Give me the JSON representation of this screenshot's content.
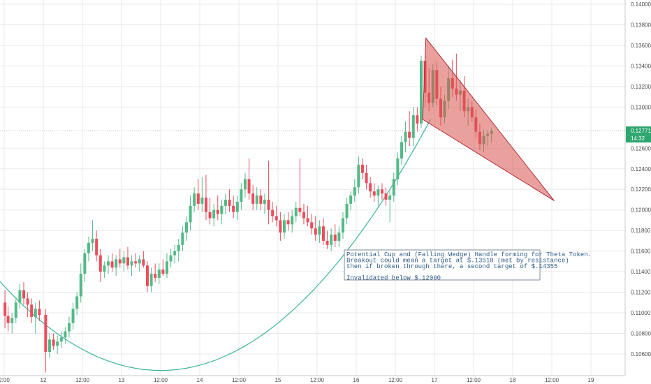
{
  "chart_data": {
    "type": "candlestick",
    "colors": {
      "up": "#53b987",
      "down": "#eb4d5c",
      "grid": "#e8e8e8",
      "cup_curve": "#3bb59a",
      "wedge_fill": "#d9534f",
      "wedge_stroke": "#b02a37",
      "last_price_bg": "#2ea56f",
      "annotation_border": "#7d8b99",
      "annotation_text": "#2e5c8a"
    },
    "ylim": [
      0.1046,
      0.1405
    ],
    "y_ticks": [
      "0.10600",
      "0.10800",
      "0.11000",
      "0.11200",
      "0.11400",
      "0.11600",
      "0.11800",
      "0.12000",
      "0.12200",
      "0.12400",
      "0.12600",
      "0.13000",
      "0.13200",
      "0.13400",
      "0.13600",
      "0.13800",
      "0.14000"
    ],
    "x_ticks": [
      "2:00",
      "12",
      "12:00",
      "13",
      "12:00",
      "14",
      "12:00",
      "15",
      "12:00",
      "16",
      "12:00",
      "17",
      "12:00",
      "18",
      "12:00",
      "19"
    ],
    "last_price": "0.12771",
    "countdown": "14:32",
    "annotation": [
      "Potential Cup and (Falling Wedge) Handle forming for Theta Token.",
      "Breakout could mean a target at $.13518 (met by resistance)",
      "then if broken through there, a second target of $.14355",
      "",
      "Invalidated below $.12000"
    ],
    "wedge": [
      [
        16.89,
        0.1367
      ],
      [
        18.53,
        0.1209
      ],
      [
        16.85,
        0.1288
      ]
    ],
    "cup": {
      "x0": 10.55,
      "x1": 16.95,
      "vertex_x": 13.5,
      "vertex_y": 0.1044,
      "end_y": 0.1288
    },
    "candles": [
      {
        "t": 11.51,
        "o": 0.111,
        "h": 0.1122,
        "l": 0.1085,
        "c": 0.1097
      },
      {
        "t": 11.55,
        "o": 0.1097,
        "h": 0.1106,
        "l": 0.1082,
        "c": 0.109
      },
      {
        "t": 11.6,
        "o": 0.109,
        "h": 0.11,
        "l": 0.108,
        "c": 0.1095
      },
      {
        "t": 11.65,
        "o": 0.1095,
        "h": 0.1115,
        "l": 0.109,
        "c": 0.111
      },
      {
        "t": 11.7,
        "o": 0.111,
        "h": 0.1128,
        "l": 0.1104,
        "c": 0.1122
      },
      {
        "t": 11.75,
        "o": 0.1122,
        "h": 0.113,
        "l": 0.1108,
        "c": 0.1114
      },
      {
        "t": 11.8,
        "o": 0.1114,
        "h": 0.112,
        "l": 0.1096,
        "c": 0.1108
      },
      {
        "t": 11.85,
        "o": 0.1108,
        "h": 0.1114,
        "l": 0.109,
        "c": 0.1096
      },
      {
        "t": 11.9,
        "o": 0.1096,
        "h": 0.111,
        "l": 0.108,
        "c": 0.1104
      },
      {
        "t": 11.95,
        "o": 0.1104,
        "h": 0.1112,
        "l": 0.1092,
        "c": 0.1098
      },
      {
        "t": 12.03,
        "o": 0.1098,
        "h": 0.1104,
        "l": 0.1042,
        "c": 0.1062
      },
      {
        "t": 12.08,
        "o": 0.1062,
        "h": 0.108,
        "l": 0.1056,
        "c": 0.1074
      },
      {
        "t": 12.13,
        "o": 0.1074,
        "h": 0.108,
        "l": 0.1064,
        "c": 0.1068
      },
      {
        "t": 12.18,
        "o": 0.1068,
        "h": 0.1078,
        "l": 0.106,
        "c": 0.1072
      },
      {
        "t": 12.23,
        "o": 0.1072,
        "h": 0.1082,
        "l": 0.1066,
        "c": 0.1076
      },
      {
        "t": 12.28,
        "o": 0.1076,
        "h": 0.1086,
        "l": 0.107,
        "c": 0.1082
      },
      {
        "t": 12.33,
        "o": 0.1082,
        "h": 0.1096,
        "l": 0.1076,
        "c": 0.109
      },
      {
        "t": 12.38,
        "o": 0.109,
        "h": 0.111,
        "l": 0.1084,
        "c": 0.1104
      },
      {
        "t": 12.43,
        "o": 0.1104,
        "h": 0.112,
        "l": 0.1098,
        "c": 0.1116
      },
      {
        "t": 12.48,
        "o": 0.1116,
        "h": 0.1148,
        "l": 0.111,
        "c": 0.1138
      },
      {
        "t": 12.53,
        "o": 0.1138,
        "h": 0.1162,
        "l": 0.113,
        "c": 0.1158
      },
      {
        "t": 12.58,
        "o": 0.1158,
        "h": 0.1174,
        "l": 0.115,
        "c": 0.1168
      },
      {
        "t": 12.63,
        "o": 0.1168,
        "h": 0.119,
        "l": 0.116,
        "c": 0.1172
      },
      {
        "t": 12.68,
        "o": 0.1172,
        "h": 0.118,
        "l": 0.115,
        "c": 0.1156
      },
      {
        "t": 12.73,
        "o": 0.1156,
        "h": 0.1162,
        "l": 0.113,
        "c": 0.114
      },
      {
        "t": 12.78,
        "o": 0.114,
        "h": 0.115,
        "l": 0.1134,
        "c": 0.1146
      },
      {
        "t": 12.83,
        "o": 0.1146,
        "h": 0.1156,
        "l": 0.1138,
        "c": 0.115
      },
      {
        "t": 12.88,
        "o": 0.115,
        "h": 0.1158,
        "l": 0.114,
        "c": 0.1144
      },
      {
        "t": 12.93,
        "o": 0.1144,
        "h": 0.1156,
        "l": 0.1136,
        "c": 0.1152
      },
      {
        "t": 12.98,
        "o": 0.1152,
        "h": 0.1162,
        "l": 0.1144,
        "c": 0.1148
      },
      {
        "t": 13.03,
        "o": 0.1148,
        "h": 0.116,
        "l": 0.114,
        "c": 0.1154
      },
      {
        "t": 13.08,
        "o": 0.1154,
        "h": 0.1164,
        "l": 0.1142,
        "c": 0.1146
      },
      {
        "t": 13.13,
        "o": 0.1146,
        "h": 0.1156,
        "l": 0.1136,
        "c": 0.115
      },
      {
        "t": 13.18,
        "o": 0.115,
        "h": 0.1158,
        "l": 0.1144,
        "c": 0.1148
      },
      {
        "t": 13.23,
        "o": 0.1148,
        "h": 0.1156,
        "l": 0.114,
        "c": 0.1152
      },
      {
        "t": 13.28,
        "o": 0.1152,
        "h": 0.116,
        "l": 0.1144,
        "c": 0.1146
      },
      {
        "t": 13.33,
        "o": 0.1146,
        "h": 0.115,
        "l": 0.112,
        "c": 0.1126
      },
      {
        "t": 13.38,
        "o": 0.1126,
        "h": 0.1144,
        "l": 0.112,
        "c": 0.1138
      },
      {
        "t": 13.43,
        "o": 0.1138,
        "h": 0.1148,
        "l": 0.113,
        "c": 0.1134
      },
      {
        "t": 13.48,
        "o": 0.1134,
        "h": 0.1148,
        "l": 0.1128,
        "c": 0.1142
      },
      {
        "t": 13.53,
        "o": 0.1142,
        "h": 0.1152,
        "l": 0.1136,
        "c": 0.1138
      },
      {
        "t": 13.58,
        "o": 0.1138,
        "h": 0.1158,
        "l": 0.1134,
        "c": 0.115
      },
      {
        "t": 13.63,
        "o": 0.115,
        "h": 0.1162,
        "l": 0.1144,
        "c": 0.1156
      },
      {
        "t": 13.68,
        "o": 0.1156,
        "h": 0.1166,
        "l": 0.1148,
        "c": 0.116
      },
      {
        "t": 13.73,
        "o": 0.116,
        "h": 0.1172,
        "l": 0.115,
        "c": 0.1166
      },
      {
        "t": 13.78,
        "o": 0.1166,
        "h": 0.1184,
        "l": 0.116,
        "c": 0.1178
      },
      {
        "t": 13.83,
        "o": 0.1178,
        "h": 0.1194,
        "l": 0.117,
        "c": 0.1188
      },
      {
        "t": 13.88,
        "o": 0.1188,
        "h": 0.1214,
        "l": 0.118,
        "c": 0.1204
      },
      {
        "t": 13.93,
        "o": 0.1204,
        "h": 0.1222,
        "l": 0.1198,
        "c": 0.1216
      },
      {
        "t": 13.98,
        "o": 0.1216,
        "h": 0.123,
        "l": 0.12,
        "c": 0.1206
      },
      {
        "t": 14.03,
        "o": 0.1206,
        "h": 0.1232,
        "l": 0.1198,
        "c": 0.1212
      },
      {
        "t": 14.08,
        "o": 0.1212,
        "h": 0.1234,
        "l": 0.119,
        "c": 0.1198
      },
      {
        "t": 14.13,
        "o": 0.1198,
        "h": 0.1212,
        "l": 0.1186,
        "c": 0.1192
      },
      {
        "t": 14.18,
        "o": 0.1192,
        "h": 0.1206,
        "l": 0.1184,
        "c": 0.12
      },
      {
        "t": 14.23,
        "o": 0.12,
        "h": 0.1214,
        "l": 0.119,
        "c": 0.1196
      },
      {
        "t": 14.28,
        "o": 0.1196,
        "h": 0.121,
        "l": 0.1186,
        "c": 0.1204
      },
      {
        "t": 14.33,
        "o": 0.1204,
        "h": 0.1216,
        "l": 0.1196,
        "c": 0.121
      },
      {
        "t": 14.38,
        "o": 0.121,
        "h": 0.122,
        "l": 0.1198,
        "c": 0.1204
      },
      {
        "t": 14.43,
        "o": 0.1204,
        "h": 0.1214,
        "l": 0.1192,
        "c": 0.1198
      },
      {
        "t": 14.48,
        "o": 0.1198,
        "h": 0.1214,
        "l": 0.119,
        "c": 0.1208
      },
      {
        "t": 14.53,
        "o": 0.1208,
        "h": 0.1226,
        "l": 0.12,
        "c": 0.122
      },
      {
        "t": 14.58,
        "o": 0.122,
        "h": 0.1236,
        "l": 0.1212,
        "c": 0.123
      },
      {
        "t": 14.63,
        "o": 0.123,
        "h": 0.125,
        "l": 0.121,
        "c": 0.1216
      },
      {
        "t": 14.68,
        "o": 0.1216,
        "h": 0.1224,
        "l": 0.12,
        "c": 0.1206
      },
      {
        "t": 14.73,
        "o": 0.1206,
        "h": 0.1222,
        "l": 0.12,
        "c": 0.1214
      },
      {
        "t": 14.78,
        "o": 0.1214,
        "h": 0.122,
        "l": 0.12,
        "c": 0.1206
      },
      {
        "t": 14.83,
        "o": 0.1206,
        "h": 0.1216,
        "l": 0.1196,
        "c": 0.121
      },
      {
        "t": 14.88,
        "o": 0.121,
        "h": 0.1248,
        "l": 0.1186,
        "c": 0.12
      },
      {
        "t": 14.93,
        "o": 0.12,
        "h": 0.1208,
        "l": 0.1188,
        "c": 0.1194
      },
      {
        "t": 14.98,
        "o": 0.1194,
        "h": 0.1204,
        "l": 0.1184,
        "c": 0.119
      },
      {
        "t": 15.03,
        "o": 0.119,
        "h": 0.1198,
        "l": 0.117,
        "c": 0.1178
      },
      {
        "t": 15.08,
        "o": 0.1178,
        "h": 0.1196,
        "l": 0.1172,
        "c": 0.119
      },
      {
        "t": 15.13,
        "o": 0.119,
        "h": 0.1198,
        "l": 0.118,
        "c": 0.1186
      },
      {
        "t": 15.18,
        "o": 0.1186,
        "h": 0.12,
        "l": 0.1178,
        "c": 0.1194
      },
      {
        "t": 15.23,
        "o": 0.1194,
        "h": 0.1208,
        "l": 0.1188,
        "c": 0.1202
      },
      {
        "t": 15.28,
        "o": 0.1202,
        "h": 0.125,
        "l": 0.1194,
        "c": 0.1198
      },
      {
        "t": 15.33,
        "o": 0.1198,
        "h": 0.1206,
        "l": 0.1186,
        "c": 0.1192
      },
      {
        "t": 15.38,
        "o": 0.1192,
        "h": 0.1204,
        "l": 0.1184,
        "c": 0.1188
      },
      {
        "t": 15.43,
        "o": 0.1188,
        "h": 0.1196,
        "l": 0.1176,
        "c": 0.1182
      },
      {
        "t": 15.48,
        "o": 0.1182,
        "h": 0.1194,
        "l": 0.117,
        "c": 0.1176
      },
      {
        "t": 15.53,
        "o": 0.1176,
        "h": 0.119,
        "l": 0.1168,
        "c": 0.1184
      },
      {
        "t": 15.58,
        "o": 0.1184,
        "h": 0.1192,
        "l": 0.1166,
        "c": 0.117
      },
      {
        "t": 15.63,
        "o": 0.117,
        "h": 0.118,
        "l": 0.1162,
        "c": 0.1166
      },
      {
        "t": 15.68,
        "o": 0.1166,
        "h": 0.1182,
        "l": 0.116,
        "c": 0.1176
      },
      {
        "t": 15.73,
        "o": 0.1176,
        "h": 0.1186,
        "l": 0.1164,
        "c": 0.117
      },
      {
        "t": 15.78,
        "o": 0.117,
        "h": 0.1184,
        "l": 0.1164,
        "c": 0.1178
      },
      {
        "t": 15.83,
        "o": 0.1178,
        "h": 0.1198,
        "l": 0.1172,
        "c": 0.1192
      },
      {
        "t": 15.88,
        "o": 0.1192,
        "h": 0.1212,
        "l": 0.1186,
        "c": 0.1206
      },
      {
        "t": 15.93,
        "o": 0.1206,
        "h": 0.1218,
        "l": 0.12,
        "c": 0.1214
      },
      {
        "t": 15.98,
        "o": 0.1214,
        "h": 0.123,
        "l": 0.1208,
        "c": 0.1222
      },
      {
        "t": 16.03,
        "o": 0.1222,
        "h": 0.1252,
        "l": 0.1216,
        "c": 0.1244
      },
      {
        "t": 16.08,
        "o": 0.1244,
        "h": 0.125,
        "l": 0.123,
        "c": 0.1236
      },
      {
        "t": 16.13,
        "o": 0.1236,
        "h": 0.1244,
        "l": 0.122,
        "c": 0.1226
      },
      {
        "t": 16.18,
        "o": 0.1226,
        "h": 0.1232,
        "l": 0.1212,
        "c": 0.1218
      },
      {
        "t": 16.23,
        "o": 0.1218,
        "h": 0.1226,
        "l": 0.1208,
        "c": 0.1214
      },
      {
        "t": 16.28,
        "o": 0.1214,
        "h": 0.1224,
        "l": 0.1204,
        "c": 0.122
      },
      {
        "t": 16.33,
        "o": 0.122,
        "h": 0.1226,
        "l": 0.121,
        "c": 0.1216
      },
      {
        "t": 16.38,
        "o": 0.1216,
        "h": 0.1222,
        "l": 0.1204,
        "c": 0.121
      },
      {
        "t": 16.43,
        "o": 0.121,
        "h": 0.1218,
        "l": 0.1188,
        "c": 0.1214
      },
      {
        "t": 16.48,
        "o": 0.1214,
        "h": 0.1236,
        "l": 0.1208,
        "c": 0.123
      },
      {
        "t": 16.53,
        "o": 0.123,
        "h": 0.1256,
        "l": 0.1224,
        "c": 0.125
      },
      {
        "t": 16.58,
        "o": 0.125,
        "h": 0.1272,
        "l": 0.1244,
        "c": 0.1266
      },
      {
        "t": 16.63,
        "o": 0.1266,
        "h": 0.1286,
        "l": 0.1256,
        "c": 0.1276
      },
      {
        "t": 16.68,
        "o": 0.1276,
        "h": 0.1296,
        "l": 0.1262,
        "c": 0.127
      },
      {
        "t": 16.73,
        "o": 0.127,
        "h": 0.13,
        "l": 0.1262,
        "c": 0.1292
      },
      {
        "t": 16.78,
        "o": 0.1292,
        "h": 0.13,
        "l": 0.1276,
        "c": 0.1284
      },
      {
        "t": 16.83,
        "o": 0.1284,
        "h": 0.135,
        "l": 0.128,
        "c": 0.1345
      },
      {
        "t": 16.88,
        "o": 0.1345,
        "h": 0.135,
        "l": 0.13,
        "c": 0.1314
      },
      {
        "t": 16.93,
        "o": 0.1314,
        "h": 0.1338,
        "l": 0.1296,
        "c": 0.1304
      },
      {
        "t": 16.98,
        "o": 0.1304,
        "h": 0.1342,
        "l": 0.13,
        "c": 0.1336
      },
      {
        "t": 17.03,
        "o": 0.1336,
        "h": 0.1344,
        "l": 0.1302,
        "c": 0.1308
      },
      {
        "t": 17.08,
        "o": 0.1308,
        "h": 0.132,
        "l": 0.1282,
        "c": 0.129
      },
      {
        "t": 17.13,
        "o": 0.129,
        "h": 0.1312,
        "l": 0.1284,
        "c": 0.1306
      },
      {
        "t": 17.18,
        "o": 0.1306,
        "h": 0.134,
        "l": 0.1298,
        "c": 0.1328
      },
      {
        "t": 17.23,
        "o": 0.1328,
        "h": 0.1346,
        "l": 0.131,
        "c": 0.1318
      },
      {
        "t": 17.28,
        "o": 0.1318,
        "h": 0.1352,
        "l": 0.1306,
        "c": 0.1312
      },
      {
        "t": 17.33,
        "o": 0.1312,
        "h": 0.1326,
        "l": 0.1296,
        "c": 0.1316
      },
      {
        "t": 17.38,
        "o": 0.1316,
        "h": 0.133,
        "l": 0.129,
        "c": 0.1296
      },
      {
        "t": 17.43,
        "o": 0.1296,
        "h": 0.1308,
        "l": 0.1282,
        "c": 0.13
      },
      {
        "t": 17.48,
        "o": 0.13,
        "h": 0.1306,
        "l": 0.1286,
        "c": 0.129
      },
      {
        "t": 17.53,
        "o": 0.129,
        "h": 0.1298,
        "l": 0.127,
        "c": 0.1276
      },
      {
        "t": 17.58,
        "o": 0.1276,
        "h": 0.1284,
        "l": 0.1258,
        "c": 0.1264
      },
      {
        "t": 17.63,
        "o": 0.1264,
        "h": 0.1278,
        "l": 0.1256,
        "c": 0.1272
      },
      {
        "t": 17.68,
        "o": 0.1272,
        "h": 0.1278,
        "l": 0.1262,
        "c": 0.1274
      },
      {
        "t": 17.73,
        "o": 0.1274,
        "h": 0.128,
        "l": 0.1266,
        "c": 0.1277
      }
    ]
  }
}
